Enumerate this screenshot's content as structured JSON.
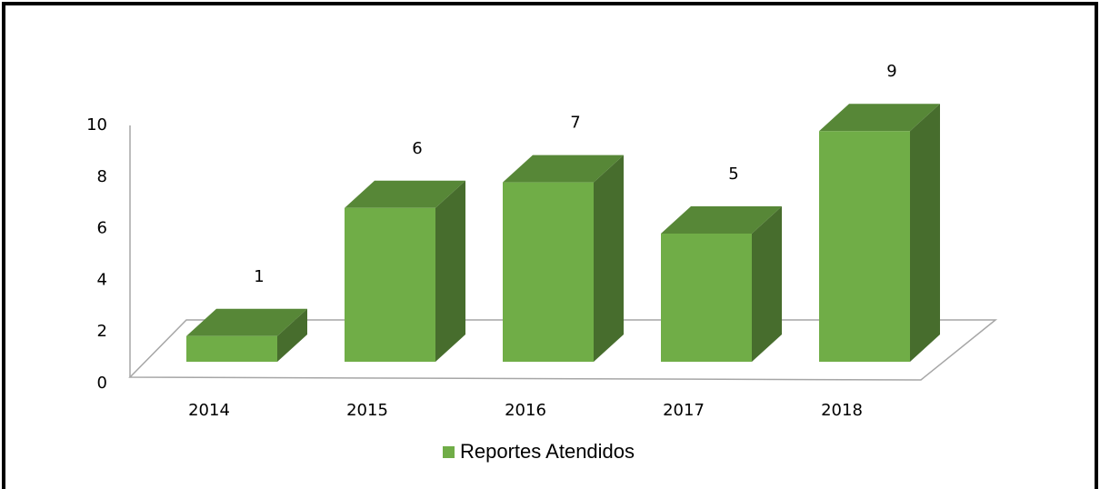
{
  "chart_data": {
    "type": "bar3d",
    "categories": [
      "2014",
      "2015",
      "2016",
      "2017",
      "2018"
    ],
    "series": [
      {
        "name": "Reportes Atendidos",
        "color": "#70ad47",
        "values": [
          1,
          6,
          7,
          5,
          9
        ]
      }
    ],
    "ylim": [
      0,
      10
    ],
    "yticks": [
      0,
      2,
      4,
      6,
      8,
      10
    ],
    "grid": false,
    "legend": "bottom"
  }
}
